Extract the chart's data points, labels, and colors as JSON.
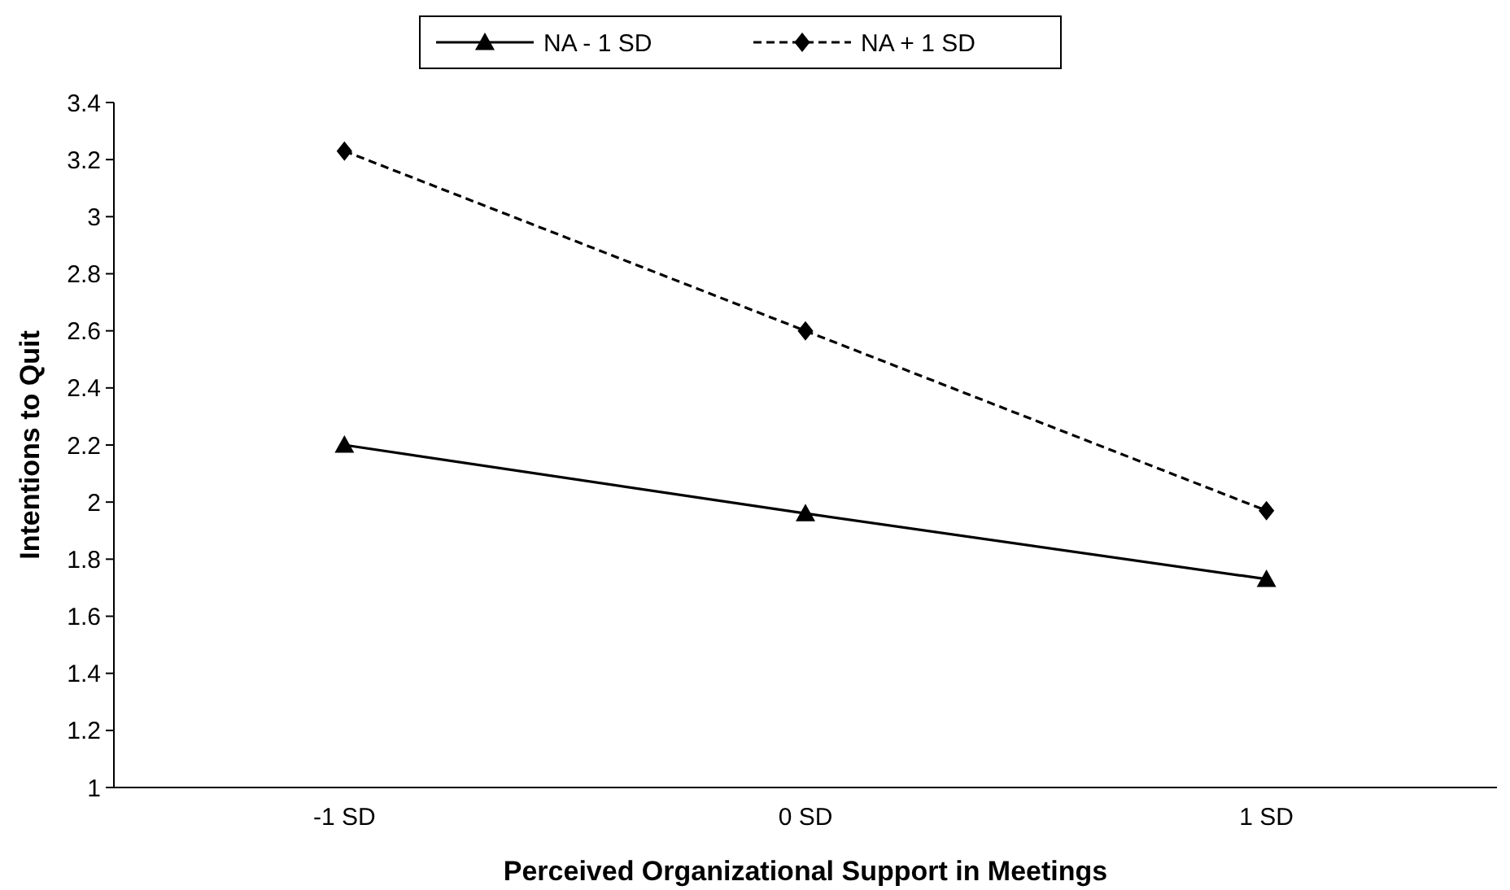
{
  "chart_data": {
    "type": "line",
    "xlabel": "Perceived Organizational Support in Meetings",
    "ylabel": "Intentions to Quit",
    "categories": [
      "-1 SD",
      "0 SD",
      "1 SD"
    ],
    "series": [
      {
        "name": "NA - 1 SD",
        "color": "#000000",
        "values": [
          2.2,
          1.96,
          1.73
        ],
        "marker": "triangle",
        "line_style": "solid"
      },
      {
        "name": "NA + 1 SD",
        "color": "#000000",
        "values": [
          3.23,
          2.6,
          1.97
        ],
        "marker": "diamond",
        "line_style": "dashed"
      }
    ],
    "ylim": [
      1,
      3.4
    ],
    "yticks": [
      1,
      1.2,
      1.4,
      1.6,
      1.8,
      2,
      2.2,
      2.4,
      2.6,
      2.8,
      3,
      3.2,
      3.4
    ],
    "grid": false,
    "legend": "top"
  }
}
